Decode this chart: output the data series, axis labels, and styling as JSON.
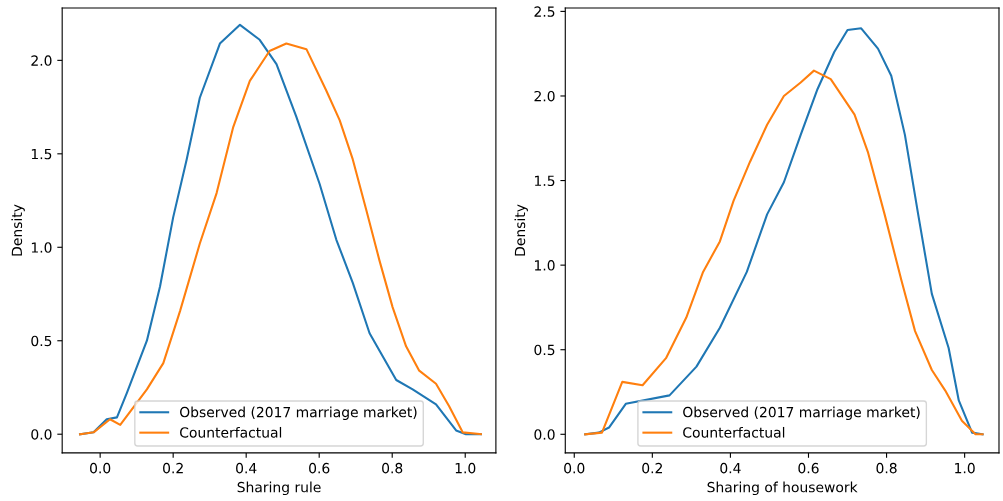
{
  "chart_data": [
    {
      "type": "line",
      "xlabel": "Sharing rule",
      "ylabel": "Density",
      "legend": "bottom",
      "grid": false,
      "xlim": [
        -0.104,
        1.084
      ],
      "ylim": [
        -0.1,
        2.28
      ],
      "xticks": [
        {
          "value": 0,
          "label": "0.0"
        },
        {
          "value": 0.2,
          "label": "0.2"
        },
        {
          "value": 0.4,
          "label": "0.4"
        },
        {
          "value": 0.6,
          "label": "0.6"
        },
        {
          "value": 0.8,
          "label": "0.8"
        },
        {
          "value": 1,
          "label": "1.0"
        }
      ],
      "yticks": [
        {
          "value": 0,
          "label": "0.0"
        },
        {
          "value": 0.5,
          "label": "0.5"
        },
        {
          "value": 1,
          "label": "1.0"
        },
        {
          "value": 1.5,
          "label": "1.5"
        },
        {
          "value": 2,
          "label": "2.0"
        }
      ],
      "series": [
        {
          "name": "Observed (2017 marriage market)",
          "color": "#1f77b4",
          "x": [
            -0.055,
            -0.018,
            0.018,
            0.046,
            0.073,
            0.128,
            0.164,
            0.2,
            0.237,
            0.273,
            0.328,
            0.383,
            0.437,
            0.483,
            0.537,
            0.601,
            0.647,
            0.692,
            0.738,
            0.811,
            0.856,
            0.92,
            0.975,
            1.002,
            1.043
          ],
          "values": [
            0,
            0.01,
            0.08,
            0.09,
            0.22,
            0.5,
            0.79,
            1.16,
            1.47,
            1.8,
            2.09,
            2.19,
            2.11,
            1.98,
            1.7,
            1.34,
            1.04,
            0.81,
            0.54,
            0.29,
            0.24,
            0.16,
            0.02,
            0,
            0
          ]
        },
        {
          "name": "Counterfactual",
          "color": "#ff7f0e",
          "x": [
            -0.055,
            -0.018,
            0.027,
            0.055,
            0.128,
            0.173,
            0.219,
            0.273,
            0.319,
            0.364,
            0.41,
            0.464,
            0.51,
            0.565,
            0.619,
            0.656,
            0.692,
            0.729,
            0.765,
            0.801,
            0.838,
            0.874,
            0.92,
            0.956,
            0.993,
            1.043
          ],
          "values": [
            0,
            0.01,
            0.08,
            0.05,
            0.24,
            0.38,
            0.66,
            1.02,
            1.29,
            1.64,
            1.89,
            2.05,
            2.09,
            2.06,
            1.84,
            1.68,
            1.47,
            1.2,
            0.93,
            0.68,
            0.47,
            0.34,
            0.27,
            0.15,
            0.01,
            0
          ]
        }
      ]
    },
    {
      "type": "line",
      "xlabel": "Sharing of housework",
      "ylabel": "Density",
      "legend": "bottom",
      "grid": false,
      "xlim": [
        -0.023,
        1.088
      ],
      "ylim": [
        -0.11,
        2.52
      ],
      "xticks": [
        {
          "value": 0,
          "label": "0.0"
        },
        {
          "value": 0.2,
          "label": "0.2"
        },
        {
          "value": 0.4,
          "label": "0.4"
        },
        {
          "value": 0.6,
          "label": "0.6"
        },
        {
          "value": 0.8,
          "label": "0.8"
        },
        {
          "value": 1,
          "label": "1.0"
        }
      ],
      "yticks": [
        {
          "value": 0,
          "label": "0.0"
        },
        {
          "value": 0.5,
          "label": "0.5"
        },
        {
          "value": 1,
          "label": "1.0"
        },
        {
          "value": 1.5,
          "label": "1.5"
        },
        {
          "value": 2,
          "label": "2.0"
        },
        {
          "value": 2.5,
          "label": "2.5"
        }
      ],
      "series": [
        {
          "name": "Observed (2017 marriage market)",
          "color": "#1f77b4",
          "x": [
            0.028,
            0.063,
            0.089,
            0.132,
            0.244,
            0.313,
            0.373,
            0.442,
            0.494,
            0.537,
            0.58,
            0.623,
            0.666,
            0.7,
            0.735,
            0.778,
            0.812,
            0.847,
            0.881,
            0.916,
            0.959,
            0.985,
            1.019,
            1.046
          ],
          "values": [
            0,
            0.01,
            0.04,
            0.18,
            0.23,
            0.4,
            0.63,
            0.96,
            1.3,
            1.49,
            1.77,
            2.04,
            2.26,
            2.39,
            2.4,
            2.28,
            2.12,
            1.77,
            1.3,
            0.83,
            0.51,
            0.2,
            0.01,
            0
          ]
        },
        {
          "name": "Counterfactual",
          "color": "#ff7f0e",
          "x": [
            0.028,
            0.071,
            0.123,
            0.175,
            0.235,
            0.287,
            0.33,
            0.373,
            0.408,
            0.45,
            0.494,
            0.537,
            0.58,
            0.614,
            0.657,
            0.718,
            0.752,
            0.795,
            0.838,
            0.873,
            0.916,
            0.95,
            0.993,
            1.028,
            1.046
          ],
          "values": [
            0,
            0.01,
            0.31,
            0.29,
            0.45,
            0.69,
            0.96,
            1.14,
            1.38,
            1.61,
            1.83,
            2.0,
            2.08,
            2.15,
            2.1,
            1.89,
            1.67,
            1.3,
            0.91,
            0.61,
            0.38,
            0.26,
            0.08,
            0,
            0
          ]
        }
      ]
    }
  ]
}
